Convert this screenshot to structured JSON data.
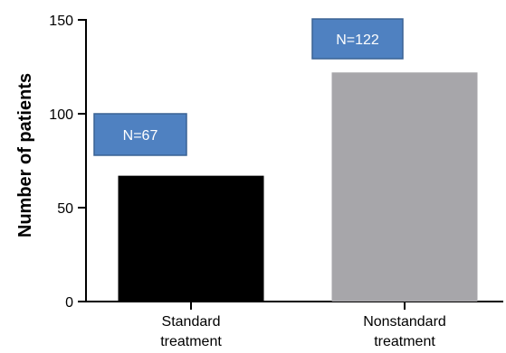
{
  "chart_data": {
    "type": "bar",
    "categories": [
      "Standard treatment",
      "Nonstandard treatment"
    ],
    "category_lines": [
      [
        "Standard",
        "treatment"
      ],
      [
        "Nonstandard",
        "treatment"
      ]
    ],
    "values": [
      67,
      122
    ],
    "data_labels": [
      "N=67",
      "N=122"
    ],
    "bar_colors": [
      "#000000",
      "#a7a6aa"
    ],
    "label_box_color": "#4f81c1",
    "label_box_border": "#3a6294",
    "title": "",
    "xlabel": "",
    "ylabel": "Number of patients",
    "ylim": [
      0,
      150
    ],
    "yticks": [
      0,
      50,
      100,
      150
    ],
    "grid": false,
    "legend": false
  }
}
